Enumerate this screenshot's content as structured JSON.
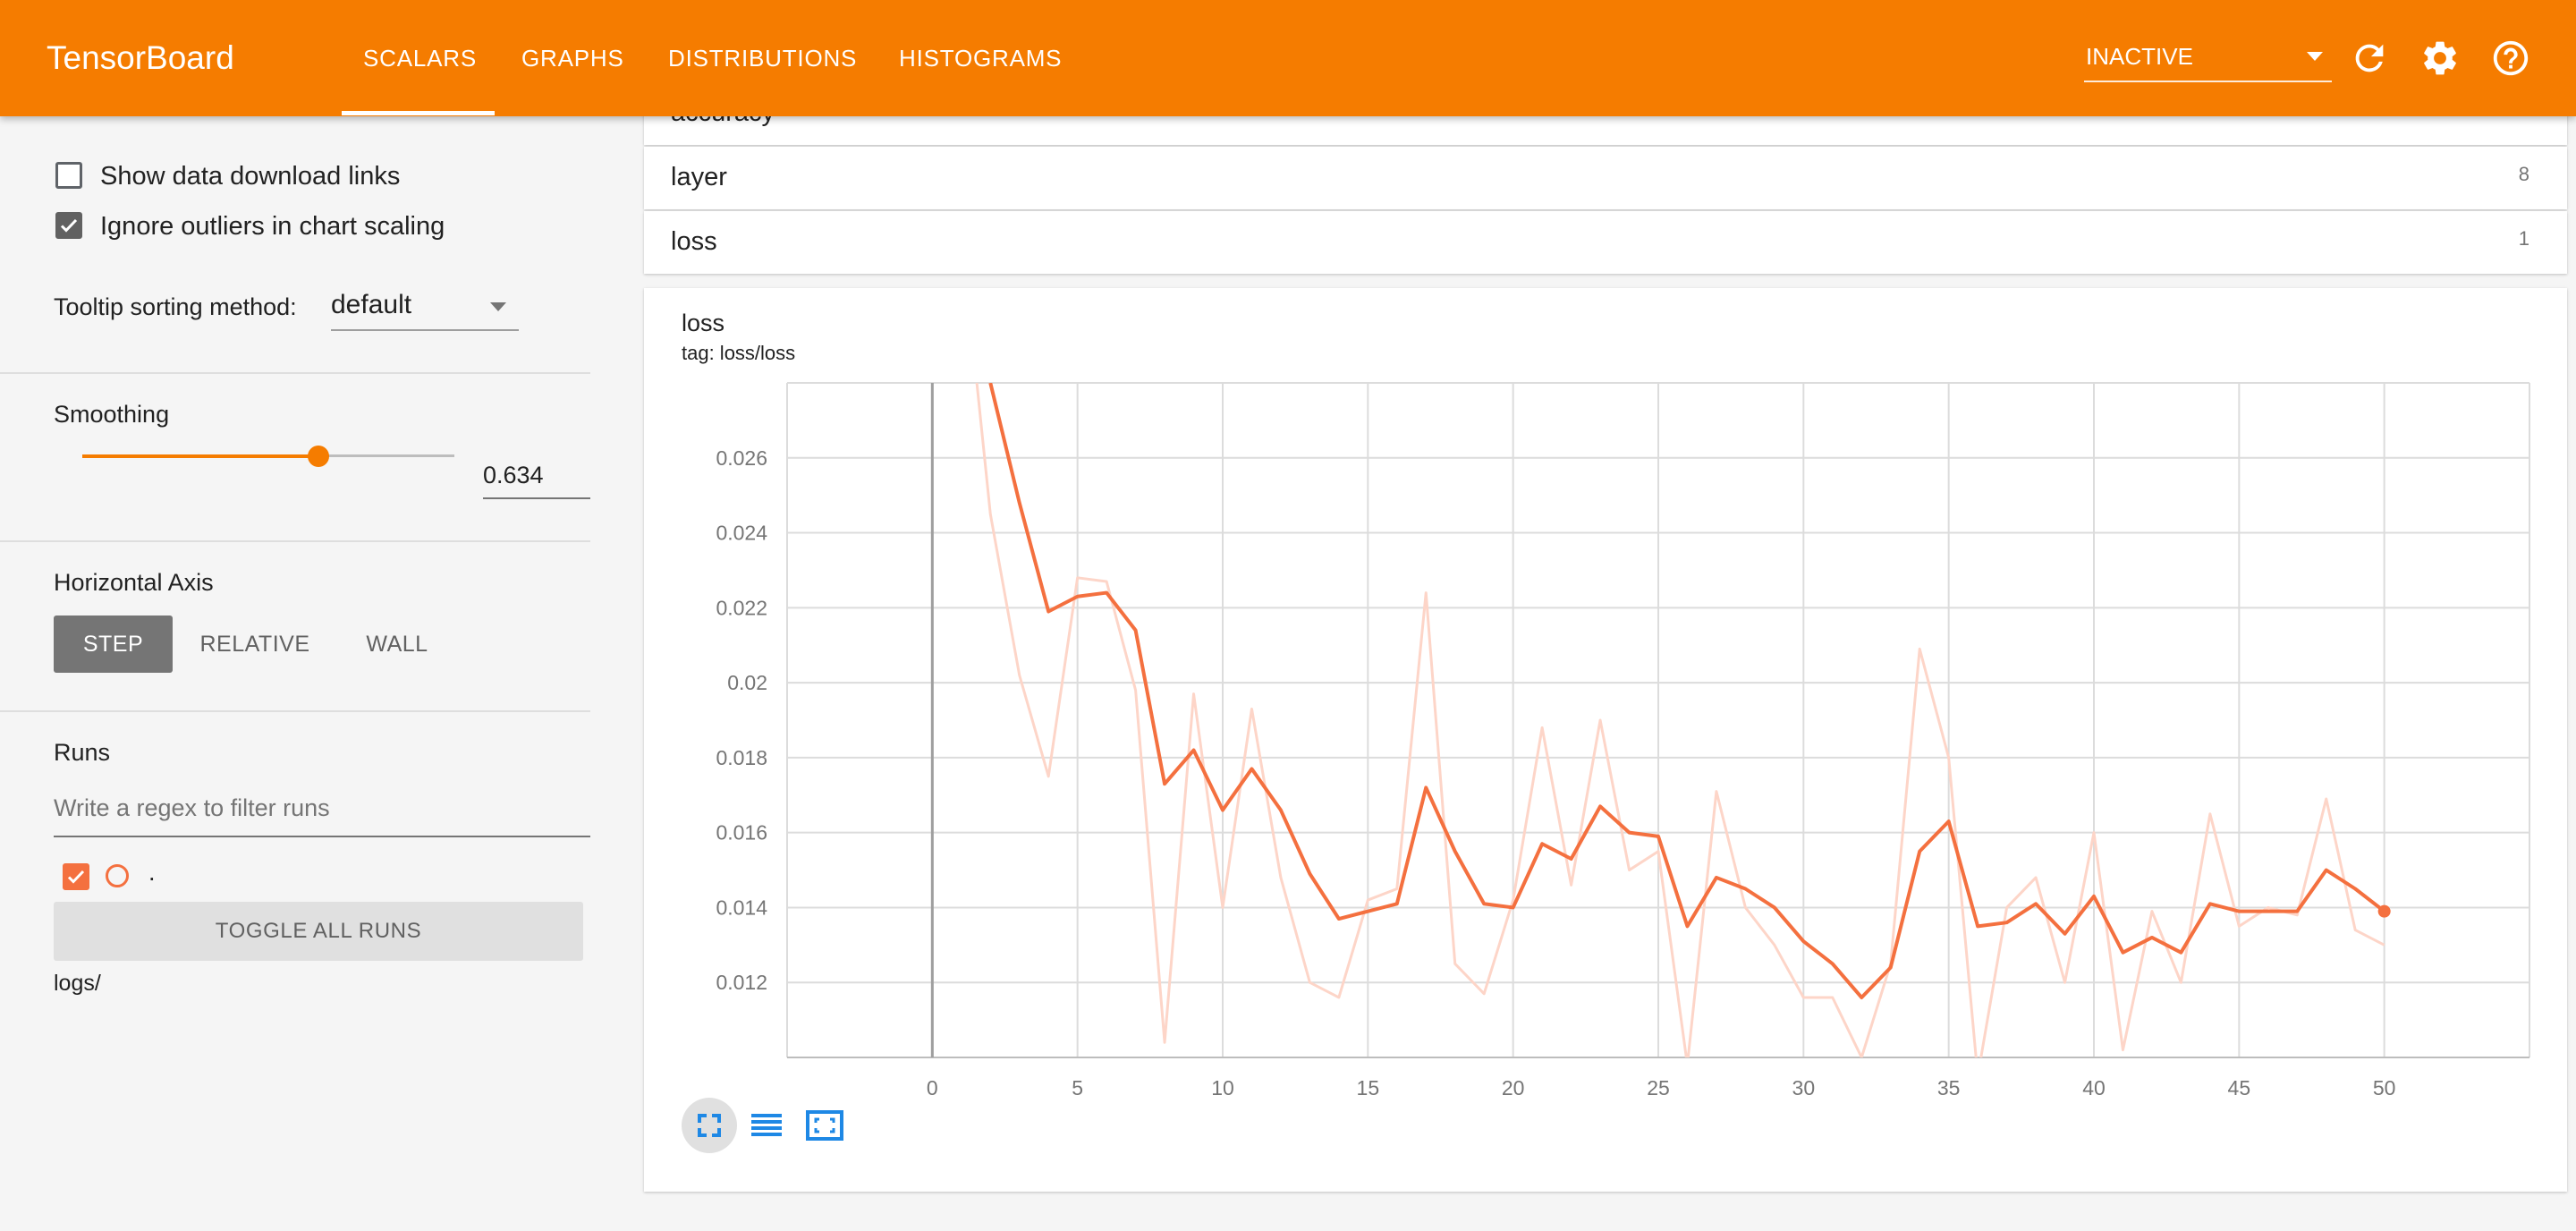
{
  "header": {
    "app_title": "TensorBoard",
    "tabs": [
      {
        "label": "SCALARS",
        "active": true
      },
      {
        "label": "GRAPHS"
      },
      {
        "label": "DISTRIBUTIONS"
      },
      {
        "label": "HISTOGRAMS"
      }
    ],
    "plugin_select_value": "INACTIVE",
    "icons": [
      "refresh-icon",
      "settings-icon",
      "help-icon"
    ]
  },
  "sidebar": {
    "show_download_links": {
      "label": "Show data download links",
      "checked": false
    },
    "ignore_outliers": {
      "label": "Ignore outliers in chart scaling",
      "checked": true
    },
    "tooltip_sorting": {
      "label": "Tooltip sorting method:",
      "value": "default"
    },
    "smoothing": {
      "label": "Smoothing",
      "value": "0.634",
      "fraction": 0.634
    },
    "horizontal_axis": {
      "label": "Horizontal Axis",
      "options": [
        "STEP",
        "RELATIVE",
        "WALL"
      ],
      "selected": "STEP"
    },
    "runs": {
      "label": "Runs",
      "filter_placeholder": "Write a regex to filter runs",
      "run_name": ".",
      "toggle_label": "TOGGLE ALL RUNS",
      "logdir": "logs/"
    }
  },
  "main": {
    "categories": [
      {
        "name": "accuracy",
        "count": ""
      },
      {
        "name": "layer",
        "count": "8"
      },
      {
        "name": "loss",
        "count": "1"
      }
    ],
    "chart": {
      "title": "loss",
      "tag": "tag: loss/loss"
    }
  },
  "colors": {
    "header": "#f57c00",
    "smoothed_line": "#f4703f",
    "raw_line": "#fdd5c8",
    "accent": "#f57c00"
  },
  "chart_data": {
    "type": "line",
    "title": "loss",
    "subtitle": "tag: loss/loss",
    "xlabel": "",
    "ylabel": "",
    "xlim": [
      -5,
      55
    ],
    "ylim": [
      0.01,
      0.028
    ],
    "x_ticks": [
      "0",
      "5",
      "10",
      "15",
      "20",
      "25",
      "30",
      "35",
      "40",
      "45",
      "50"
    ],
    "y_ticks": [
      "0.012",
      "0.014",
      "0.016",
      "0.018",
      "0.02",
      "0.022",
      "0.024",
      "0.026"
    ],
    "grid": true,
    "series": [
      {
        "name": "",
        "role": "raw",
        "x": [
          1,
          2,
          3,
          4,
          5,
          6,
          7,
          8,
          9,
          10,
          11,
          12,
          13,
          14,
          15,
          16,
          17,
          18,
          19,
          20,
          21,
          22,
          23,
          24,
          25,
          26,
          27,
          28,
          29,
          30,
          31,
          32,
          33,
          34,
          35,
          36,
          37,
          38,
          39,
          40,
          41,
          42,
          43,
          44,
          45,
          46,
          47,
          48,
          49,
          50
        ],
        "values": [
          0.032,
          0.0245,
          0.0202,
          0.0175,
          0.0228,
          0.0227,
          0.0198,
          0.0104,
          0.0197,
          0.014,
          0.0193,
          0.0148,
          0.012,
          0.0116,
          0.0142,
          0.0145,
          0.0224,
          0.0125,
          0.0117,
          0.0142,
          0.0188,
          0.0146,
          0.019,
          0.015,
          0.0155,
          0.0098,
          0.0171,
          0.014,
          0.013,
          0.0116,
          0.0116,
          0.01,
          0.0125,
          0.0209,
          0.018,
          0.0095,
          0.014,
          0.0148,
          0.012,
          0.016,
          0.0102,
          0.0139,
          0.012,
          0.0165,
          0.0135,
          0.014,
          0.0138,
          0.0169,
          0.0134,
          0.013
        ]
      },
      {
        "name": "",
        "role": "smoothed",
        "x": [
          2,
          3,
          4,
          5,
          6,
          7,
          8,
          9,
          10,
          11,
          12,
          13,
          14,
          15,
          16,
          17,
          18,
          19,
          20,
          21,
          22,
          23,
          24,
          25,
          26,
          27,
          28,
          29,
          30,
          31,
          32,
          33,
          34,
          35,
          36,
          37,
          38,
          39,
          40,
          41,
          42,
          43,
          44,
          45,
          46,
          47,
          48,
          49,
          50
        ],
        "values": [
          0.028,
          0.0248,
          0.0219,
          0.0223,
          0.0224,
          0.0214,
          0.0173,
          0.0182,
          0.0166,
          0.0177,
          0.0166,
          0.0149,
          0.0137,
          0.0139,
          0.0141,
          0.0172,
          0.0155,
          0.0141,
          0.014,
          0.0157,
          0.0153,
          0.0167,
          0.016,
          0.0159,
          0.0135,
          0.0148,
          0.0145,
          0.014,
          0.0131,
          0.0125,
          0.0116,
          0.0124,
          0.0155,
          0.0163,
          0.0135,
          0.0136,
          0.0141,
          0.0133,
          0.0143,
          0.0128,
          0.0132,
          0.0128,
          0.0141,
          0.0139,
          0.0139,
          0.0139,
          0.015,
          0.0145,
          0.0139
        ]
      }
    ]
  }
}
